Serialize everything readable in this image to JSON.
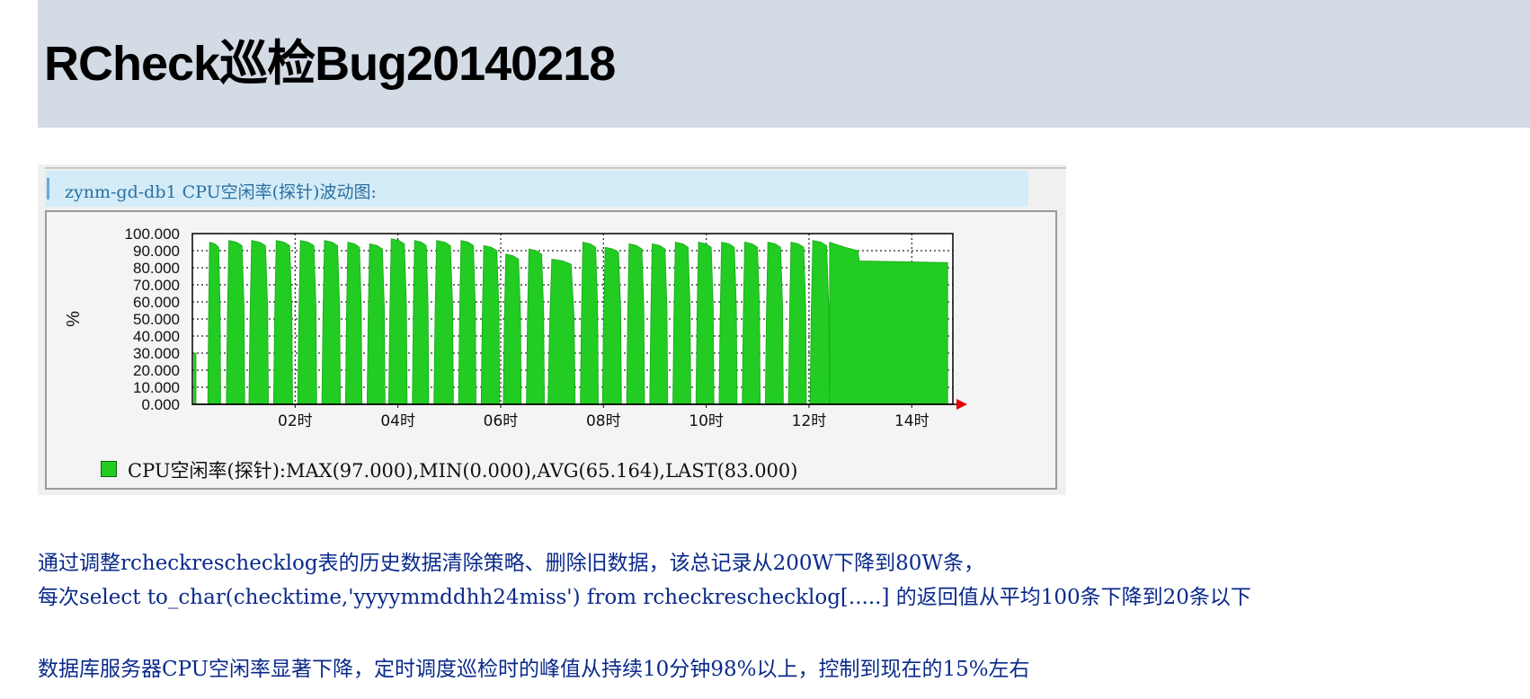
{
  "page": {
    "title": "RCheck巡检Bug20140218"
  },
  "panel": {
    "title": "zynm-gd-db1 CPU空闲率(探针)波动图:"
  },
  "paragraphs": [
    "通过调整rcheckreschecklog表的历史数据清除策略、删除旧数据，该总记录从200W下降到80W条，",
    "每次select to_char(checktime,'yyyymmddhh24miss') from rcheckreschecklog[.....] 的返回值从平均100条下降到20条以下",
    "数据库服务器CPU空闲率显著下降，定时调度巡检时的峰值从持续10分钟98%以上，控制到现在的15%左右"
  ],
  "chart_data": {
    "type": "area",
    "ylabel": "%",
    "ylim": [
      0,
      100
    ],
    "y_ticks": [
      "0.000",
      "10.000",
      "20.000",
      "30.000",
      "40.000",
      "50.000",
      "60.000",
      "70.000",
      "80.000",
      "90.000",
      "100.000"
    ],
    "x_ticks": [
      {
        "hour": 2,
        "label": "02时"
      },
      {
        "hour": 4,
        "label": "04时"
      },
      {
        "hour": 6,
        "label": "06时"
      },
      {
        "hour": 8,
        "label": "08时"
      },
      {
        "hour": 10,
        "label": "10时"
      },
      {
        "hour": 12,
        "label": "12时"
      },
      {
        "hour": 14,
        "label": "14时"
      }
    ],
    "xlim_hours": [
      0,
      14.8
    ],
    "grid": true,
    "series_color": "#22cc22",
    "legend": "CPU空闲率(探针):MAX(97.000),MIN(0.000),AVG(65.164),LAST(83.000)",
    "bursts": [
      {
        "start": 0.3,
        "end": 0.55,
        "peak": 95
      },
      {
        "start": 0.66,
        "end": 1.02,
        "peak": 96
      },
      {
        "start": 1.1,
        "end": 1.48,
        "peak": 96
      },
      {
        "start": 1.58,
        "end": 1.95,
        "peak": 96
      },
      {
        "start": 2.05,
        "end": 2.42,
        "peak": 96
      },
      {
        "start": 2.52,
        "end": 2.88,
        "peak": 96
      },
      {
        "start": 2.98,
        "end": 3.3,
        "peak": 95
      },
      {
        "start": 3.4,
        "end": 3.75,
        "peak": 94
      },
      {
        "start": 3.82,
        "end": 4.18,
        "peak": 97
      },
      {
        "start": 4.28,
        "end": 4.6,
        "peak": 96
      },
      {
        "start": 4.7,
        "end": 5.08,
        "peak": 96
      },
      {
        "start": 5.18,
        "end": 5.52,
        "peak": 96
      },
      {
        "start": 5.62,
        "end": 5.98,
        "peak": 93
      },
      {
        "start": 6.05,
        "end": 6.4,
        "peak": 88
      },
      {
        "start": 6.5,
        "end": 6.85,
        "peak": 91
      },
      {
        "start": 6.92,
        "end": 7.45,
        "peak": 85
      },
      {
        "start": 7.55,
        "end": 7.9,
        "peak": 95
      },
      {
        "start": 7.98,
        "end": 8.35,
        "peak": 92
      },
      {
        "start": 8.45,
        "end": 8.8,
        "peak": 94
      },
      {
        "start": 8.9,
        "end": 9.25,
        "peak": 94
      },
      {
        "start": 9.35,
        "end": 9.7,
        "peak": 95
      },
      {
        "start": 9.8,
        "end": 10.15,
        "peak": 95
      },
      {
        "start": 10.25,
        "end": 10.6,
        "peak": 95
      },
      {
        "start": 10.7,
        "end": 11.05,
        "peak": 95
      },
      {
        "start": 11.15,
        "end": 11.5,
        "peak": 95
      },
      {
        "start": 11.6,
        "end": 11.95,
        "peak": 95
      },
      {
        "start": 12.02,
        "end": 12.4,
        "peak": 96
      }
    ],
    "tail": [
      {
        "x": 12.4,
        "y": 95
      },
      {
        "x": 12.7,
        "y": 92
      },
      {
        "x": 12.95,
        "y": 90
      },
      {
        "x": 12.98,
        "y": 84
      },
      {
        "x": 14.7,
        "y": 83
      }
    ],
    "start_spike": {
      "x": 0.05,
      "y": 30
    }
  }
}
